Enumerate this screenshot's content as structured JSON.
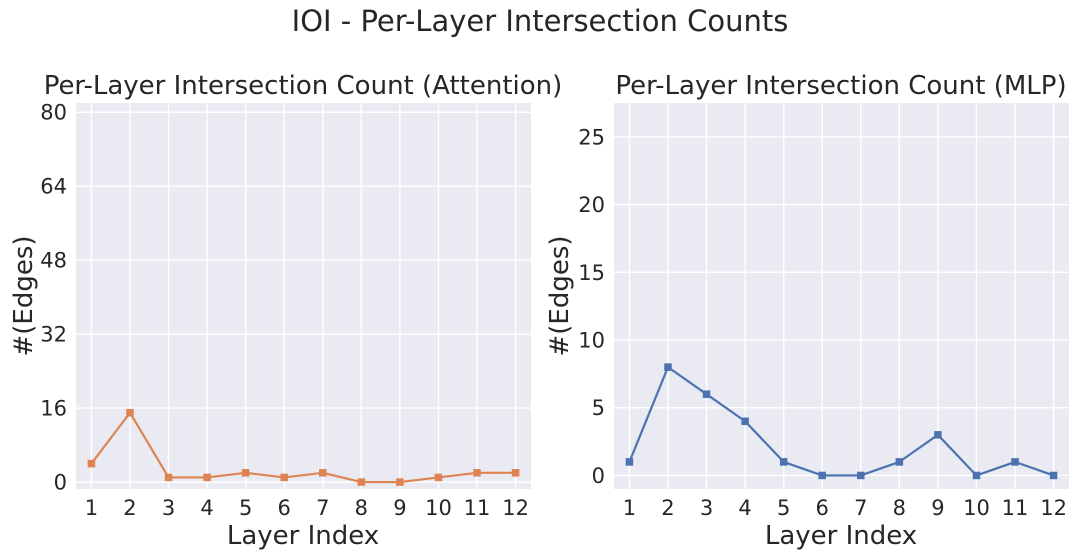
{
  "chart_data": {
    "suptitle": "IOI - Per-Layer Intersection Counts",
    "panels": [
      {
        "type": "line",
        "title": "Per-Layer Intersection Count (Attention)",
        "xlabel": "Layer Index",
        "ylabel": "#(Edges)",
        "x": [
          1,
          2,
          3,
          4,
          5,
          6,
          7,
          8,
          9,
          10,
          11,
          12
        ],
        "xticks": [
          "1",
          "2",
          "3",
          "4",
          "5",
          "6",
          "7",
          "8",
          "9",
          "10",
          "11",
          "12"
        ],
        "yticks": [
          0,
          16,
          32,
          48,
          64,
          80
        ],
        "ytick_labels": [
          "0",
          "16",
          "32",
          "48",
          "64",
          "80"
        ],
        "ylim": [
          -1.5,
          82
        ],
        "xlim": [
          0.6,
          12.4
        ],
        "grid": true,
        "marker": "square",
        "color": "#dd8452",
        "series": [
          {
            "values": [
              4,
              15,
              1,
              1,
              2,
              1,
              2,
              0,
              0,
              1,
              2,
              2
            ]
          }
        ]
      },
      {
        "type": "line",
        "title": "Per-Layer Intersection Count (MLP)",
        "xlabel": "Layer Index",
        "ylabel": "#(Edges)",
        "x": [
          1,
          2,
          3,
          4,
          5,
          6,
          7,
          8,
          9,
          10,
          11,
          12
        ],
        "xticks": [
          "1",
          "2",
          "3",
          "4",
          "5",
          "6",
          "7",
          "8",
          "9",
          "10",
          "11",
          "12"
        ],
        "yticks": [
          0,
          5,
          10,
          15,
          20,
          25
        ],
        "ytick_labels": [
          "0",
          "5",
          "10",
          "15",
          "20",
          "25"
        ],
        "ylim": [
          -1.0,
          27.5
        ],
        "xlim": [
          0.6,
          12.4
        ],
        "grid": true,
        "marker": "square",
        "color": "#4c72b0",
        "series": [
          {
            "values": [
              1,
              8,
              6,
              4,
              1,
              0,
              0,
              1,
              3,
              0,
              1,
              0
            ]
          }
        ]
      }
    ]
  }
}
